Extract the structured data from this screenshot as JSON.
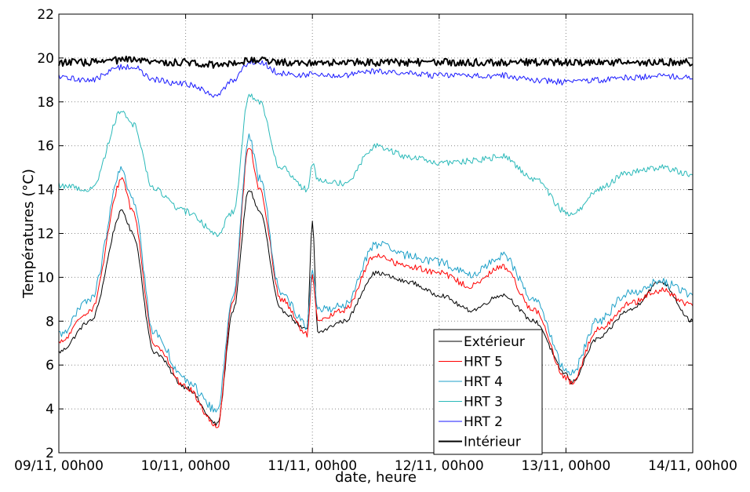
{
  "chart_data": {
    "type": "line",
    "title": "",
    "xlabel": "date, heure",
    "ylabel": "Températures (°C)",
    "ylim": [
      2,
      22
    ],
    "xlim": [
      "2009-11-09 00:00",
      "2009-11-14 00:00"
    ],
    "x_ticks": [
      "09/11, 00h00",
      "10/11, 00h00",
      "11/11, 00h00",
      "12/11, 00h00",
      "13/11, 00h00",
      "14/11, 00h00"
    ],
    "y_ticks": [
      2,
      4,
      6,
      8,
      10,
      12,
      14,
      16,
      18,
      20,
      22
    ],
    "grid": true,
    "legend_position": "lower-right",
    "legend": [
      "Extérieur",
      "HRT 5",
      "HRT 4",
      "HRT 3",
      "HRT 2",
      "Intérieur"
    ],
    "x_times": [
      "09/11 00h",
      "09/11 06h",
      "09/11 12h",
      "09/11 14h",
      "09/11 18h",
      "10/11 00h",
      "10/11 06h",
      "10/11 09h",
      "10/11 12h",
      "10/11 14h",
      "10/11 18h",
      "10/11 23h",
      "11/11 00h",
      "11/11 01h",
      "11/11 06h",
      "11/11 12h",
      "11/11 18h",
      "12/11 00h",
      "12/11 06h",
      "12/11 12h",
      "12/11 18h",
      "13/11 00h",
      "13/11 01h",
      "13/11 06h",
      "13/11 12h",
      "13/11 18h",
      "14/11 00h"
    ],
    "series": [
      {
        "name": "Extérieur",
        "color": "#000000",
        "width": 1,
        "noise": 0.1,
        "values": [
          6.6,
          8.0,
          13.0,
          12.0,
          6.6,
          5.0,
          3.3,
          8.5,
          14.0,
          13.0,
          8.5,
          7.6,
          12.5,
          7.5,
          8.0,
          10.2,
          9.8,
          9.2,
          8.5,
          9.2,
          8.0,
          5.6,
          5.2,
          7.2,
          8.5,
          9.8,
          8.0
        ]
      },
      {
        "name": "HRT 5",
        "color": "#ff0000",
        "width": 1,
        "noise": 0.14,
        "values": [
          7.0,
          8.5,
          14.5,
          13.0,
          7.0,
          5.0,
          3.2,
          9.0,
          16.0,
          14.0,
          9.0,
          7.4,
          10.0,
          8.0,
          8.5,
          11.0,
          10.5,
          10.2,
          9.6,
          10.5,
          8.5,
          5.4,
          5.2,
          7.6,
          8.8,
          9.4,
          8.7
        ]
      },
      {
        "name": "HRT 4",
        "color": "#1ea0c8",
        "width": 1,
        "noise": 0.2,
        "values": [
          7.4,
          9.0,
          14.9,
          13.5,
          7.5,
          5.3,
          3.9,
          9.3,
          16.4,
          14.5,
          9.3,
          7.8,
          10.5,
          8.5,
          8.7,
          11.5,
          11.0,
          10.7,
          10.1,
          11.0,
          9.0,
          5.8,
          5.6,
          8.0,
          9.3,
          9.8,
          9.2
        ]
      },
      {
        "name": "HRT 3",
        "color": "#2ab9b9",
        "width": 1,
        "noise": 0.15,
        "values": [
          14.2,
          14.0,
          17.6,
          17.0,
          14.0,
          13.0,
          12.0,
          13.0,
          18.3,
          18.0,
          15.0,
          14.0,
          15.2,
          14.5,
          14.3,
          16.0,
          15.5,
          15.2,
          15.3,
          15.5,
          14.5,
          13.0,
          12.8,
          14.0,
          14.8,
          15.0,
          14.7
        ]
      },
      {
        "name": "HRT 2",
        "color": "#1a1aff",
        "width": 1,
        "noise": 0.14,
        "values": [
          19.1,
          19.0,
          19.6,
          19.6,
          19.0,
          18.8,
          18.3,
          19.0,
          19.8,
          19.8,
          19.3,
          19.2,
          19.3,
          19.2,
          19.2,
          19.4,
          19.3,
          19.2,
          19.2,
          19.2,
          19.0,
          18.9,
          18.9,
          19.0,
          19.1,
          19.2,
          19.1
        ]
      },
      {
        "name": "Intérieur",
        "color": "#000000",
        "width": 2,
        "noise": 0.17,
        "values": [
          19.8,
          19.8,
          19.9,
          19.9,
          19.8,
          19.8,
          19.7,
          19.8,
          19.9,
          19.9,
          19.8,
          19.8,
          19.8,
          19.8,
          19.8,
          19.8,
          19.8,
          19.8,
          19.8,
          19.8,
          19.8,
          19.8,
          19.8,
          19.8,
          19.8,
          19.8,
          19.8
        ]
      }
    ]
  }
}
